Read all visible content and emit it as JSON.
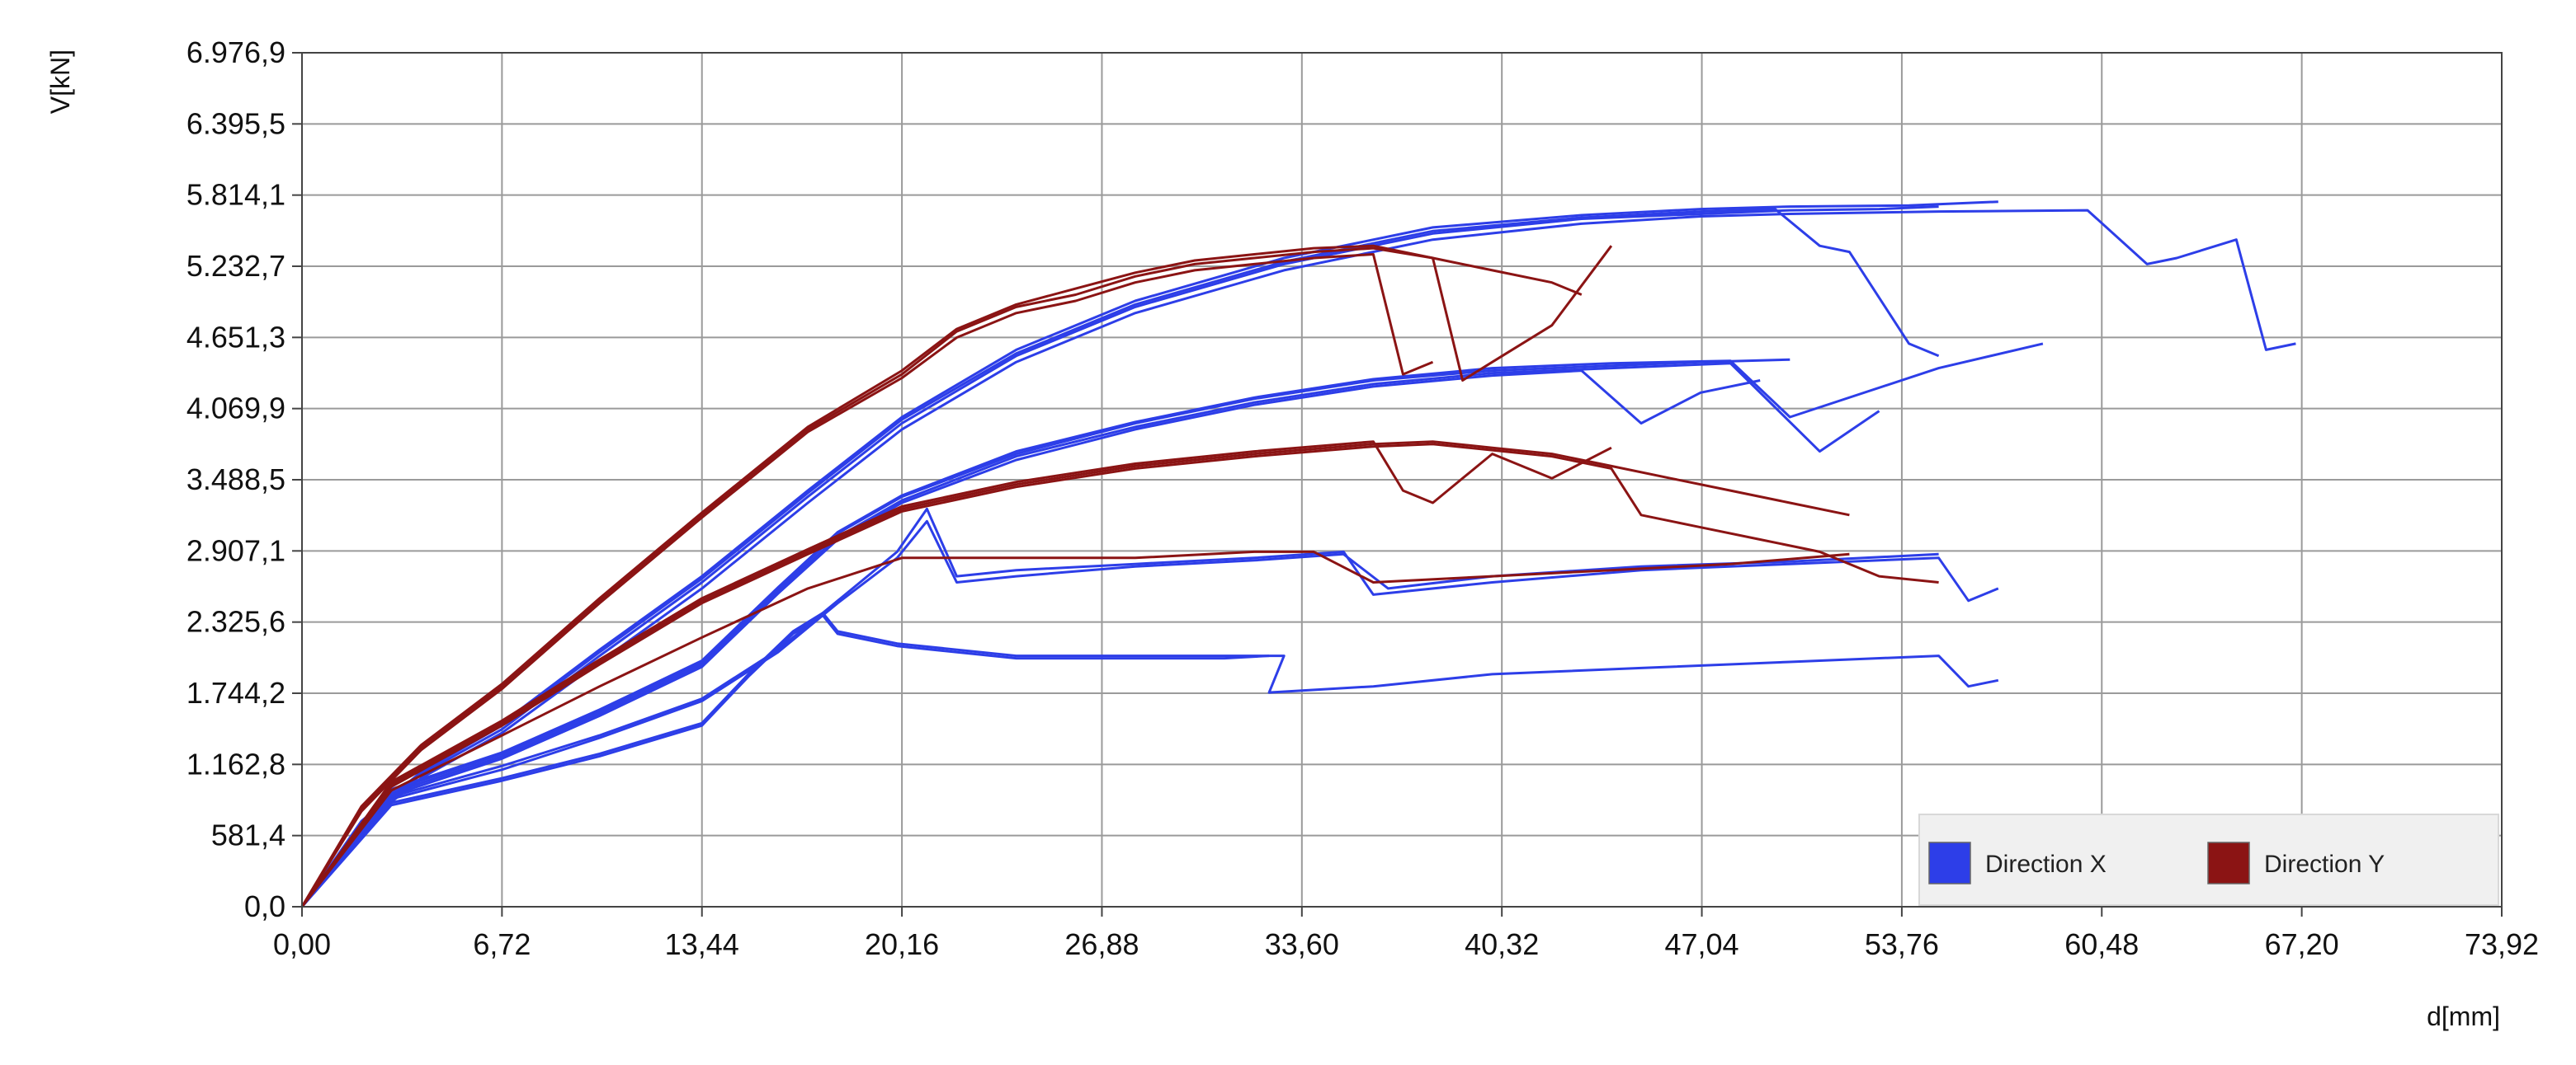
{
  "chart_data": {
    "type": "line",
    "title": "",
    "xlabel": "d[mm]",
    "ylabel": "V[kN]",
    "xlim": [
      0,
      73.92
    ],
    "ylim": [
      0,
      6976.9
    ],
    "x_ticks": [
      "0,00",
      "6,72",
      "13,44",
      "20,16",
      "26,88",
      "33,60",
      "40,32",
      "47,04",
      "53,76",
      "60,48",
      "67,20",
      "73,92"
    ],
    "y_ticks": [
      "0,0",
      "581,4",
      "1.162,8",
      "1.744,2",
      "2.325,6",
      "2.907,1",
      "3.488,5",
      "4.069,9",
      "4.651,3",
      "5.232,7",
      "5.814,1",
      "6.395,5",
      "6.976,9"
    ],
    "grid": true,
    "legend_position": "bottom-right",
    "series": [
      {
        "name": "Direction X",
        "color": "#2d3ee8",
        "lines": [
          {
            "x": [
              0,
              2,
              4,
              6.72,
              10,
              13.44,
              17,
              20.16,
              24,
              28,
              33,
              38,
              43,
              47,
              50,
              54,
              57
            ],
            "y": [
              0,
              700,
              1100,
              1500,
              2100,
              2700,
              3400,
              4000,
              4550,
              4950,
              5300,
              5550,
              5650,
              5700,
              5720,
              5730,
              5760
            ]
          },
          {
            "x": [
              0,
              2,
              4,
              6.72,
              10,
              13.44,
              17,
              20.16,
              24,
              28,
              33,
              38,
              43,
              47,
              50,
              53,
              55
            ],
            "y": [
              0,
              680,
              1080,
              1450,
              2050,
              2650,
              3350,
              3950,
              4500,
              4900,
              5250,
              5500,
              5620,
              5660,
              5690,
              5700,
              5720
            ]
          },
          {
            "x": [
              0,
              2,
              4,
              6.72,
              10,
              13.44,
              17,
              20.16,
              24,
              28,
              33,
              38,
              43,
              47,
              50,
              55,
              60,
              62,
              63,
              65,
              66,
              67
            ],
            "y": [
              0,
              660,
              1050,
              1420,
              2000,
              2600,
              3300,
              3900,
              4450,
              4850,
              5200,
              5450,
              5580,
              5640,
              5660,
              5680,
              5690,
              5250,
              5300,
              5450,
              4550,
              4600
            ]
          },
          {
            "x": [
              0,
              2,
              4,
              6.72,
              10,
              13.44,
              17,
              20.16,
              24,
              28,
              33,
              38,
              43,
              47,
              49.5,
              51,
              52,
              54,
              55
            ],
            "y": [
              0,
              700,
              1100,
              1480,
              2080,
              2680,
              3380,
              3980,
              4520,
              4920,
              5270,
              5520,
              5630,
              5680,
              5700,
              5400,
              5350,
              4600,
              4500
            ]
          },
          {
            "x": [
              0,
              3,
              6.72,
              10,
              13.44,
              16,
              18,
              20.16,
              24,
              28,
              32,
              36,
              40,
              44,
              47,
              50
            ],
            "y": [
              0,
              950,
              1250,
              1600,
              2000,
              2600,
              3050,
              3350,
              3700,
              3950,
              4150,
              4300,
              4380,
              4420,
              4450,
              4470
            ]
          },
          {
            "x": [
              0,
              3,
              6.72,
              10,
              13.44,
              16,
              18,
              20.16,
              24,
              28,
              32,
              36,
              40,
              44,
              48,
              51,
              53
            ],
            "y": [
              0,
              930,
              1230,
              1580,
              1980,
              2580,
              3020,
              3320,
              3680,
              3920,
              4120,
              4270,
              4360,
              4400,
              4440,
              3720,
              4050
            ]
          },
          {
            "x": [
              0,
              3,
              6.72,
              10,
              13.44,
              16,
              18,
              20.16,
              24,
              28,
              32,
              36,
              40,
              43,
              45,
              47,
              49
            ],
            "y": [
              0,
              910,
              1210,
              1560,
              1960,
              2560,
              3000,
              3300,
              3650,
              3900,
              4100,
              4250,
              4340,
              4380,
              3950,
              4200,
              4300
            ]
          },
          {
            "x": [
              0,
              3,
              6.72,
              10,
              13.44,
              16,
              18,
              20.16,
              24,
              28,
              32,
              36,
              40,
              44,
              48,
              50,
              55,
              58.5
            ],
            "y": [
              0,
              960,
              1260,
              1610,
              2010,
              2610,
              3060,
              3360,
              3720,
              3960,
              4160,
              4310,
              4400,
              4440,
              4460,
              4000,
              4400,
              4600
            ]
          },
          {
            "x": [
              0,
              3,
              6.72,
              10,
              13.44,
              16,
              18,
              20,
              21,
              22,
              24,
              28,
              32,
              35,
              36,
              40,
              45,
              50,
              55,
              56,
              57
            ],
            "y": [
              0,
              900,
              1150,
              1400,
              1700,
              2100,
              2500,
              2900,
              3250,
              2700,
              2750,
              2800,
              2850,
              2900,
              2550,
              2650,
              2750,
              2800,
              2850,
              2500,
              2600
            ]
          },
          {
            "x": [
              0,
              3,
              6.72,
              10,
              13.44,
              16,
              18,
              20,
              21,
              22,
              24,
              28,
              32,
              35,
              36.5,
              40,
              45,
              50,
              55
            ],
            "y": [
              0,
              880,
              1120,
              1380,
              1680,
              2080,
              2480,
              2850,
              3150,
              2650,
              2700,
              2780,
              2830,
              2880,
              2600,
              2700,
              2780,
              2820,
              2880
            ]
          },
          {
            "x": [
              0,
              3,
              6.72,
              10,
              13.44,
              15,
              16.5,
              17.5,
              18,
              20,
              24,
              28,
              31,
              33,
              32.5,
              36,
              40,
              45,
              50,
              55,
              56,
              57
            ],
            "y": [
              0,
              850,
              1050,
              1250,
              1500,
              1900,
              2250,
              2400,
              2250,
              2150,
              2050,
              2050,
              2050,
              2050,
              1750,
              1800,
              1900,
              1950,
              2000,
              2050,
              1800,
              1850
            ]
          },
          {
            "x": [
              0,
              3,
              6.72,
              10,
              13.44,
              15,
              16.5,
              17.5,
              18,
              20,
              24,
              28,
              31,
              32.5
            ],
            "y": [
              0,
              830,
              1030,
              1230,
              1480,
              1880,
              2230,
              2380,
              2230,
              2130,
              2030,
              2030,
              2030,
              2050
            ]
          }
        ]
      },
      {
        "name": "Direction Y",
        "color": "#8b1414",
        "lines": [
          {
            "x": [
              0,
              2,
              4,
              6.72,
              10,
              13.44,
              17,
              20.16,
              22,
              24,
              26,
              28,
              30,
              32,
              34,
              36,
              38,
              40,
              42,
              43
            ],
            "y": [
              0,
              800,
              1300,
              1800,
              2500,
              3200,
              3900,
              4350,
              4700,
              4900,
              5000,
              5150,
              5250,
              5300,
              5350,
              5380,
              5300,
              5200,
              5100,
              5000
            ]
          },
          {
            "x": [
              0,
              2,
              4,
              6.72,
              10,
              13.44,
              17,
              20.16,
              22,
              24,
              26,
              28,
              30,
              32,
              34,
              36,
              37,
              38
            ],
            "y": [
              0,
              780,
              1280,
              1780,
              2480,
              3180,
              3880,
              4320,
              4650,
              4850,
              4950,
              5100,
              5200,
              5250,
              5300,
              5330,
              4350,
              4450
            ]
          },
          {
            "x": [
              0,
              2,
              4,
              6.72,
              10,
              13.44,
              17,
              20.16,
              22,
              24,
              26,
              28,
              30,
              32,
              34,
              36,
              38,
              39,
              40,
              42,
              44
            ],
            "y": [
              0,
              820,
              1320,
              1820,
              2520,
              3220,
              3920,
              4380,
              4720,
              4920,
              5050,
              5180,
              5280,
              5330,
              5380,
              5400,
              5300,
              4300,
              4450,
              4750,
              5400
            ]
          },
          {
            "x": [
              0,
              3,
              6.72,
              10,
              13.44,
              17,
              20.16,
              24,
              28,
              32,
              36,
              38,
              40,
              42,
              44,
              46,
              48,
              50,
              52
            ],
            "y": [
              0,
              1000,
              1500,
              2000,
              2500,
              2900,
              3250,
              3450,
              3600,
              3700,
              3780,
              3800,
              3750,
              3700,
              3600,
              3500,
              3400,
              3300,
              3200
            ]
          },
          {
            "x": [
              0,
              3,
              6.72,
              10,
              13.44,
              17,
              20.16,
              24,
              28,
              32,
              36,
              38,
              40,
              42,
              44,
              45,
              47,
              49,
              51,
              53,
              55
            ],
            "y": [
              0,
              980,
              1480,
              1980,
              2480,
              2880,
              3230,
              3430,
              3580,
              3680,
              3760,
              3780,
              3730,
              3680,
              3580,
              3200,
              3100,
              3000,
              2900,
              2700,
              2650
            ]
          },
          {
            "x": [
              0,
              3,
              6.72,
              10,
              13.44,
              17,
              20.16,
              24,
              28,
              32,
              36,
              37,
              38,
              40,
              42,
              44
            ],
            "y": [
              0,
              1020,
              1520,
              2020,
              2520,
              2920,
              3270,
              3470,
              3620,
              3720,
              3800,
              3400,
              3300,
              3700,
              3500,
              3750
            ]
          },
          {
            "x": [
              0,
              3,
              6.72,
              10,
              13.44,
              17,
              20.16,
              24,
              28,
              32,
              34,
              36,
              40,
              44,
              48,
              52
            ],
            "y": [
              0,
              950,
              1400,
              1800,
              2200,
              2600,
              2850,
              2850,
              2850,
              2900,
              2900,
              2650,
              2700,
              2750,
              2800,
              2880
            ]
          }
        ]
      }
    ]
  }
}
